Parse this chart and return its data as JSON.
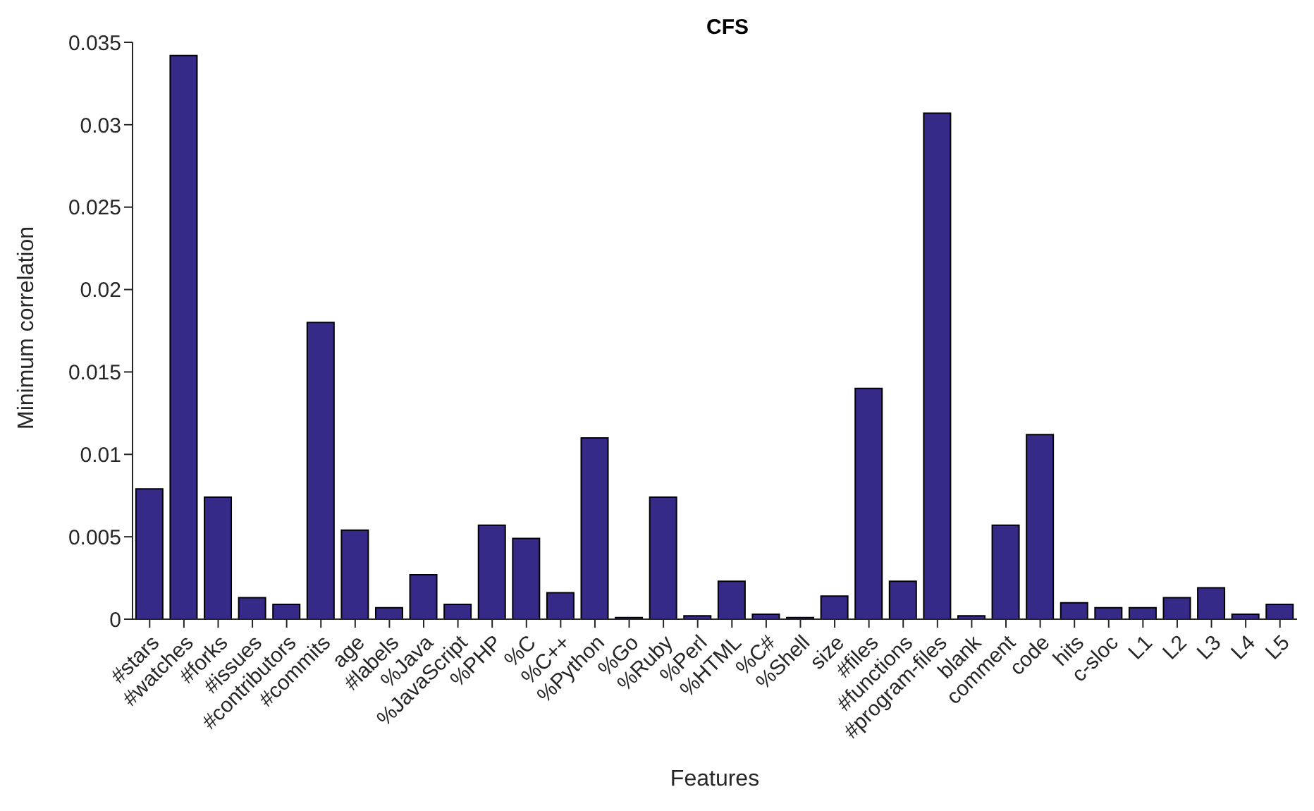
{
  "chart_data": {
    "type": "bar",
    "title": "CFS",
    "xlabel": "Features",
    "ylabel": "Minimum correlation",
    "categories": [
      "#stars",
      "#watches",
      "#forks",
      "#issues",
      "#contributors",
      "#commits",
      "age",
      "#labels",
      "%Java",
      "%JavaScript",
      "%PHP",
      "%C",
      "%C++",
      "%Python",
      "%Go",
      "%Ruby",
      "%Perl",
      "%HTML",
      "%C#",
      "%Shell",
      "size",
      "#files",
      "#functions",
      "#program-files",
      "blank",
      "comment",
      "code",
      "hits",
      "c-sloc",
      "L1",
      "L2",
      "L3",
      "L4",
      "L5"
    ],
    "values": [
      0.0079,
      0.0342,
      0.0074,
      0.0013,
      0.0009,
      0.018,
      0.0054,
      0.0007,
      0.0027,
      0.0009,
      0.0057,
      0.0049,
      0.0016,
      0.011,
      0.0001,
      0.0074,
      0.0002,
      0.0023,
      0.0003,
      0.0001,
      0.0014,
      0.014,
      0.0023,
      0.0307,
      0.0002,
      0.0057,
      0.0112,
      0.001,
      0.0007,
      0.0007,
      0.0013,
      0.0019,
      0.0003,
      0.0009
    ],
    "color": "#352a87",
    "ylim": [
      0,
      0.035
    ],
    "yticks": [
      0,
      0.005,
      0.01,
      0.015,
      0.02,
      0.025,
      0.03,
      0.035
    ],
    "grid": false,
    "legend": false
  }
}
